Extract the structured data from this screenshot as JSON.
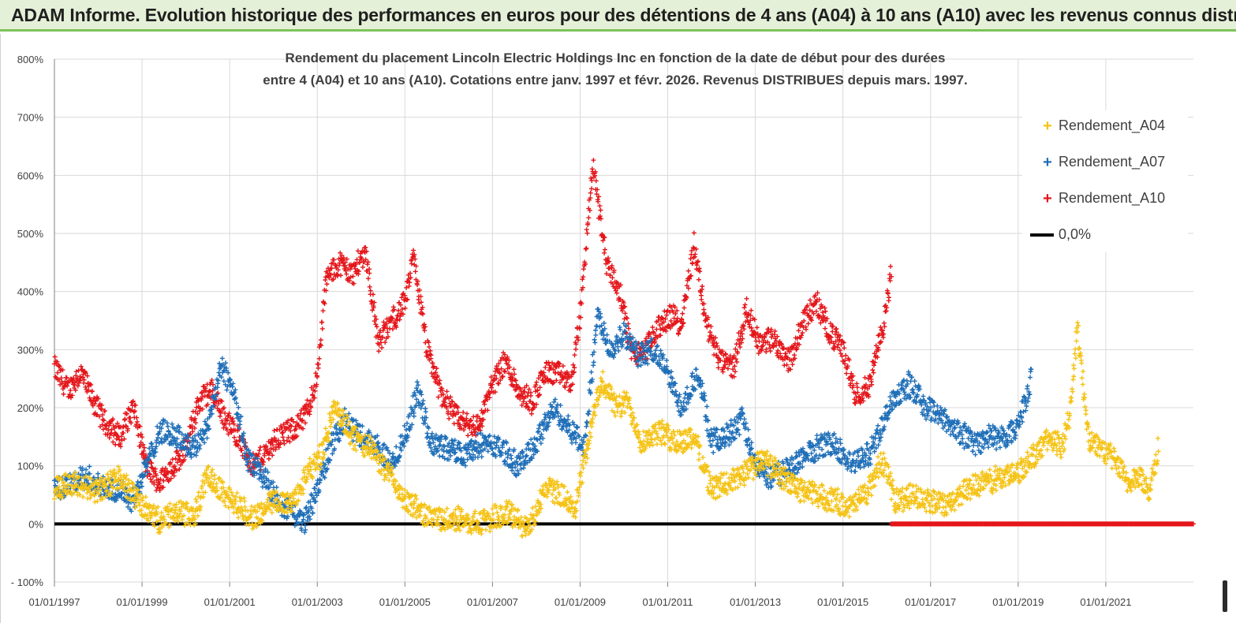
{
  "banner": {
    "title": "ADAM Informe. Evolution historique des performances en euros pour des détentions de 4 ans (A04) à 10 ans (A10) avec les revenus connus distribués"
  },
  "chart_title": {
    "line1": "Rendement du placement Lincoln Electric Holdings Inc en fonction de la date de début pour des durées",
    "line2": "entre 4 (A04) et 10 ans (A10). Cotations entre janv. 1997 et févr. 2026. Revenus DISTRIBUES depuis mars. 1997."
  },
  "legend": {
    "a04": "Rendement_A04",
    "a07": "Rendement_A07",
    "a10": "Rendement_A10",
    "zero": "0,0%"
  },
  "colors": {
    "a04": "#f5c316",
    "a07": "#1f6fb8",
    "a10": "#e4161b",
    "zero": "#000000",
    "grid": "#d9d9d9",
    "banner_bg": "#e5f0d8",
    "banner_border": "#7cc35a"
  },
  "chart_data": {
    "type": "scatter",
    "title": "Rendement du placement Lincoln Electric Holdings Inc en fonction de la date de début pour des durées entre 4 (A04) et 10 ans (A10). Cotations entre janv. 1997 et févr. 2026. Revenus DISTRIBUES depuis mars. 1997.",
    "xlabel": "",
    "ylabel": "",
    "x_unit": "year",
    "xlim": [
      1997.0,
      2023.0
    ],
    "ylim": [
      -100,
      800
    ],
    "y_ticks": [
      -100,
      0,
      100,
      200,
      300,
      400,
      500,
      600,
      700,
      800
    ],
    "y_tick_labels": [
      "- 100%",
      "0%",
      "100%",
      "200%",
      "300%",
      "400%",
      "500%",
      "600%",
      "700%",
      "800%"
    ],
    "x_ticks": [
      1997,
      1999,
      2001,
      2003,
      2005,
      2007,
      2009,
      2011,
      2013,
      2015,
      2017,
      2019,
      2021
    ],
    "x_tick_labels": [
      "01/01/1997",
      "01/01/1999",
      "01/01/2001",
      "01/01/2003",
      "01/01/2005",
      "01/01/2007",
      "01/01/2009",
      "01/01/2011",
      "01/01/2013",
      "01/01/2015",
      "01/01/2017",
      "01/01/2019",
      "01/01/2021"
    ],
    "legend_position": "top-right",
    "series": [
      {
        "name": "Rendement_A04",
        "marker": "+",
        "x": [
          1997.0,
          1997.5,
          1998.0,
          1998.5,
          1999.0,
          1999.4,
          1999.8,
          2000.2,
          2000.5,
          2000.8,
          2001.2,
          2001.6,
          2002.0,
          2002.4,
          2002.8,
          2003.1,
          2003.4,
          2003.8,
          2004.2,
          2004.6,
          2005.0,
          2005.4,
          2005.8,
          2006.2,
          2006.6,
          2007.0,
          2007.4,
          2007.8,
          2008.2,
          2008.6,
          2008.9,
          2009.2,
          2009.5,
          2009.8,
          2010.1,
          2010.4,
          2010.8,
          2011.2,
          2011.6,
          2012.0,
          2012.4,
          2012.8,
          2013.2,
          2013.6,
          2014.0,
          2014.4,
          2014.8,
          2015.2,
          2015.6,
          2015.9,
          2016.2,
          2016.6,
          2017.0,
          2017.4,
          2017.8,
          2018.2,
          2018.6,
          2019.0,
          2019.4,
          2019.7,
          2020.0,
          2020.2,
          2020.35,
          2020.6,
          2020.9,
          2021.2,
          2021.5,
          2021.8,
          2022.0,
          2022.2
        ],
        "y": [
          60,
          70,
          55,
          80,
          30,
          5,
          20,
          15,
          85,
          60,
          30,
          10,
          40,
          35,
          90,
          120,
          200,
          150,
          130,
          90,
          40,
          20,
          5,
          10,
          0,
          10,
          20,
          -10,
          60,
          50,
          30,
          150,
          250,
          200,
          210,
          140,
          160,
          140,
          150,
          60,
          70,
          90,
          110,
          80,
          60,
          50,
          40,
          30,
          60,
          110,
          40,
          50,
          40,
          30,
          60,
          70,
          80,
          90,
          120,
          150,
          130,
          200,
          340,
          150,
          130,
          110,
          70,
          80,
          60,
          130
        ]
      },
      {
        "name": "Rendement_A07",
        "marker": "+",
        "x": [
          1997.0,
          1997.4,
          1997.8,
          1998.2,
          1998.5,
          1998.8,
          1999.1,
          1999.4,
          1999.8,
          2000.2,
          2000.5,
          2000.8,
          2001.1,
          2001.4,
          2001.8,
          2002.1,
          2002.4,
          2002.7,
          2003.0,
          2003.3,
          2003.6,
          2004.0,
          2004.4,
          2004.7,
          2005.0,
          2005.3,
          2005.6,
          2006.0,
          2006.4,
          2006.8,
          2007.2,
          2007.6,
          2008.0,
          2008.4,
          2008.8,
          2009.1,
          2009.4,
          2009.7,
          2010.0,
          2010.3,
          2010.7,
          2011.0,
          2011.3,
          2011.7,
          2012.0,
          2012.3,
          2012.7,
          2013.0,
          2013.3,
          2013.7,
          2014.0,
          2014.4,
          2014.8,
          2015.2,
          2015.6,
          2015.9,
          2016.2,
          2016.5,
          2016.9,
          2017.2,
          2017.6,
          2018.0,
          2018.4,
          2018.7,
          2019.0,
          2019.3
        ],
        "y": [
          60,
          70,
          80,
          60,
          60,
          40,
          100,
          160,
          150,
          130,
          170,
          270,
          230,
          110,
          80,
          40,
          20,
          0,
          60,
          130,
          180,
          150,
          130,
          100,
          150,
          230,
          140,
          130,
          120,
          140,
          130,
          100,
          140,
          200,
          160,
          130,
          360,
          300,
          330,
          290,
          300,
          260,
          200,
          260,
          140,
          150,
          180,
          100,
          80,
          90,
          110,
          130,
          140,
          100,
          120,
          170,
          220,
          240,
          200,
          190,
          160,
          140,
          150,
          150,
          170,
          250
        ]
      },
      {
        "name": "Rendement_A10",
        "marker": "+",
        "x": [
          1997.0,
          1997.3,
          1997.6,
          1997.9,
          1998.2,
          1998.5,
          1998.8,
          1999.1,
          1999.4,
          1999.7,
          2000.0,
          2000.3,
          2000.6,
          2000.9,
          2001.2,
          2001.5,
          2001.8,
          2002.1,
          2002.4,
          2002.7,
          2003.0,
          2003.2,
          2003.5,
          2003.8,
          2004.1,
          2004.4,
          2004.7,
          2005.0,
          2005.2,
          2005.5,
          2005.8,
          2006.1,
          2006.4,
          2006.7,
          2007.0,
          2007.3,
          2007.6,
          2007.9,
          2008.2,
          2008.5,
          2008.8,
          2009.0,
          2009.1,
          2009.3,
          2009.6,
          2009.9,
          2010.2,
          2010.5,
          2010.8,
          2011.1,
          2011.3,
          2011.6,
          2011.9,
          2012.2,
          2012.5,
          2012.8,
          2013.1,
          2013.4,
          2013.8,
          2014.1,
          2014.4,
          2014.7,
          2015.0,
          2015.3,
          2015.6,
          2015.9,
          2016.1
        ],
        "y": [
          270,
          230,
          260,
          210,
          170,
          150,
          200,
          100,
          70,
          100,
          130,
          210,
          230,
          180,
          150,
          100,
          120,
          150,
          160,
          180,
          250,
          420,
          450,
          430,
          470,
          310,
          350,
          380,
          460,
          300,
          230,
          190,
          170,
          170,
          240,
          280,
          230,
          210,
          260,
          260,
          240,
          360,
          450,
          620,
          450,
          400,
          290,
          300,
          340,
          360,
          340,
          480,
          340,
          280,
          270,
          370,
          310,
          320,
          280,
          350,
          380,
          330,
          300,
          220,
          240,
          330,
          430
        ]
      },
      {
        "name": "Rendement_A10 (zero band)",
        "marker": "+",
        "x": [
          2016.1,
          2023.0
        ],
        "y": [
          0,
          0
        ]
      },
      {
        "name": "0,0%",
        "marker": "line",
        "x": [
          1997.0,
          2016.1
        ],
        "y": [
          0,
          0
        ]
      }
    ]
  }
}
